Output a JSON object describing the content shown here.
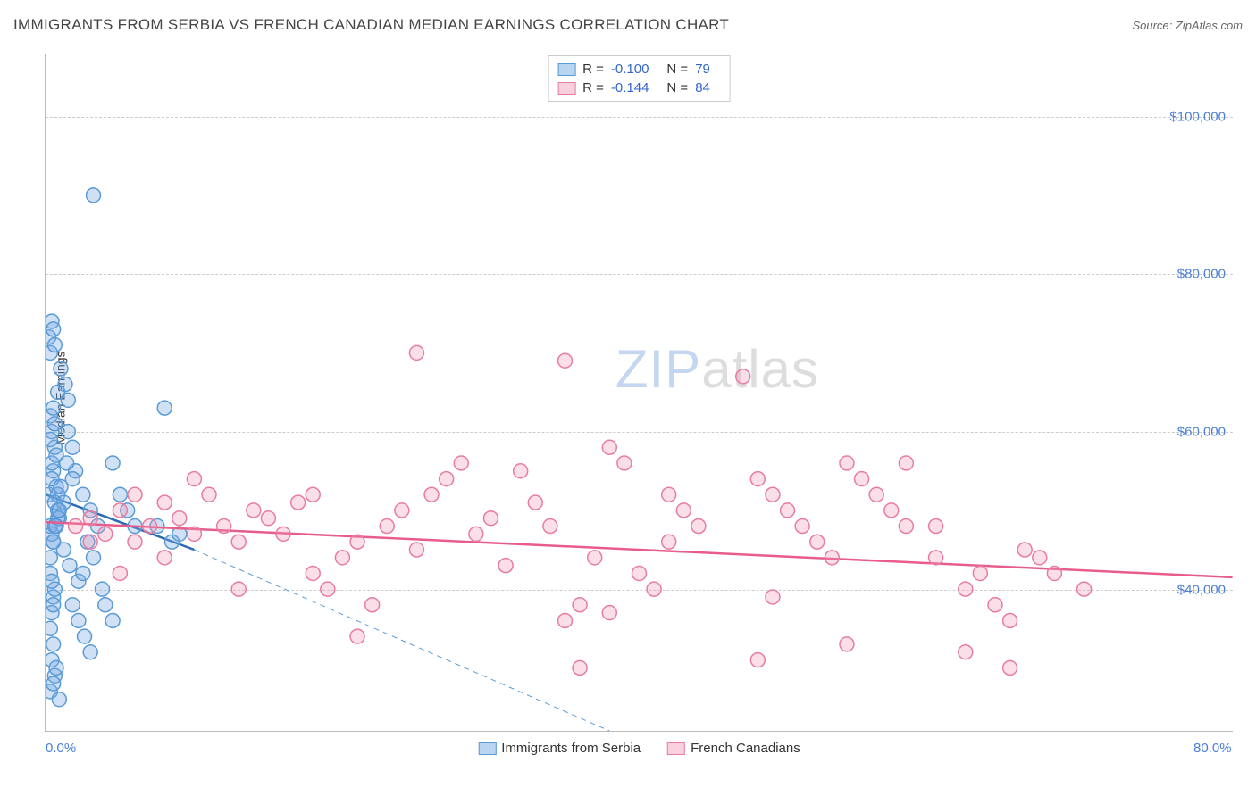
{
  "title": "IMMIGRANTS FROM SERBIA VS FRENCH CANADIAN MEDIAN EARNINGS CORRELATION CHART",
  "source": "Source: ZipAtlas.com",
  "watermark_parts": [
    "ZIP",
    "atlas"
  ],
  "chart": {
    "type": "scatter",
    "ylabel": "Median Earnings",
    "xlim": [
      0,
      80
    ],
    "ylim": [
      22000,
      108000
    ],
    "x_ticks": [
      {
        "v": 0,
        "label": "0.0%"
      },
      {
        "v": 80,
        "label": "80.0%"
      }
    ],
    "y_ticks": [
      {
        "v": 40000,
        "label": "$40,000"
      },
      {
        "v": 60000,
        "label": "$60,000"
      },
      {
        "v": 80000,
        "label": "$80,000"
      },
      {
        "v": 100000,
        "label": "$100,000"
      }
    ],
    "grid_color": "#cccccc",
    "background_color": "#ffffff",
    "marker_radius": 8,
    "marker_stroke_width": 1.5,
    "trend_line_width": 2.5,
    "dashed_line_width": 1,
    "series": [
      {
        "name": "Immigrants from Serbia",
        "color_fill": "rgba(120,170,230,0.35)",
        "color_stroke": "#5a9bd5",
        "swatch_fill": "#b8d4f0",
        "swatch_stroke": "#5a9bd5",
        "R": "-0.100",
        "N": "79",
        "trend": {
          "x1": 0,
          "y1": 52000,
          "x2": 10,
          "y2": 45000,
          "color": "#2b6cb0"
        },
        "dashed_extension": {
          "x1": 10,
          "y1": 45000,
          "x2": 38,
          "y2": 22000,
          "color": "#5a9bd5"
        },
        "points": [
          [
            0.2,
            52000
          ],
          [
            0.3,
            48000
          ],
          [
            0.5,
            55000
          ],
          [
            0.4,
            60000
          ],
          [
            0.6,
            58000
          ],
          [
            0.3,
            62000
          ],
          [
            0.8,
            50000
          ],
          [
            0.5,
            46000
          ],
          [
            0.7,
            53000
          ],
          [
            0.4,
            56000
          ],
          [
            0.9,
            49000
          ],
          [
            0.6,
            61000
          ],
          [
            0.3,
            59000
          ],
          [
            0.5,
            63000
          ],
          [
            0.7,
            57000
          ],
          [
            0.4,
            54000
          ],
          [
            0.8,
            52000
          ],
          [
            0.6,
            48000
          ],
          [
            0.2,
            72000
          ],
          [
            0.4,
            74000
          ],
          [
            0.3,
            70000
          ],
          [
            0.5,
            73000
          ],
          [
            0.6,
            71000
          ],
          [
            0.3,
            42000
          ],
          [
            0.5,
            39000
          ],
          [
            0.4,
            37000
          ],
          [
            0.6,
            40000
          ],
          [
            0.3,
            35000
          ],
          [
            0.5,
            33000
          ],
          [
            0.4,
            31000
          ],
          [
            0.6,
            29000
          ],
          [
            0.3,
            27000
          ],
          [
            0.5,
            38000
          ],
          [
            0.4,
            41000
          ],
          [
            1.5,
            60000
          ],
          [
            1.8,
            58000
          ],
          [
            2.0,
            55000
          ],
          [
            2.5,
            52000
          ],
          [
            3.0,
            50000
          ],
          [
            3.5,
            48000
          ],
          [
            1.2,
            45000
          ],
          [
            1.6,
            43000
          ],
          [
            2.2,
            41000
          ],
          [
            1.4,
            56000
          ],
          [
            1.8,
            54000
          ],
          [
            4.5,
            56000
          ],
          [
            5.0,
            52000
          ],
          [
            5.5,
            50000
          ],
          [
            6.0,
            48000
          ],
          [
            4.0,
            38000
          ],
          [
            4.5,
            36000
          ],
          [
            3.2,
            90000
          ],
          [
            8.0,
            63000
          ],
          [
            7.5,
            48000
          ],
          [
            8.5,
            46000
          ],
          [
            9.0,
            47000
          ],
          [
            1.0,
            68000
          ],
          [
            1.3,
            66000
          ],
          [
            0.8,
            65000
          ],
          [
            1.5,
            64000
          ],
          [
            2.8,
            46000
          ],
          [
            3.2,
            44000
          ],
          [
            2.5,
            42000
          ],
          [
            3.8,
            40000
          ],
          [
            0.4,
            47000
          ],
          [
            0.6,
            51000
          ],
          [
            0.8,
            49000
          ],
          [
            1.0,
            53000
          ],
          [
            1.2,
            51000
          ],
          [
            0.3,
            44000
          ],
          [
            0.5,
            46000
          ],
          [
            0.7,
            48000
          ],
          [
            0.9,
            50000
          ],
          [
            1.8,
            38000
          ],
          [
            2.2,
            36000
          ],
          [
            2.6,
            34000
          ],
          [
            3.0,
            32000
          ],
          [
            0.5,
            28000
          ],
          [
            0.7,
            30000
          ],
          [
            0.9,
            26000
          ]
        ]
      },
      {
        "name": "French Canadians",
        "color_fill": "rgba(240,150,180,0.3)",
        "color_stroke": "#e87ca0",
        "swatch_fill": "#f8d0de",
        "swatch_stroke": "#e87ca0",
        "R": "-0.144",
        "N": "84",
        "trend": {
          "x1": 0,
          "y1": 48500,
          "x2": 80,
          "y2": 41500,
          "color": "#e85c8a"
        },
        "points": [
          [
            2,
            48000
          ],
          [
            3,
            49000
          ],
          [
            4,
            47000
          ],
          [
            5,
            50000
          ],
          [
            6,
            46000
          ],
          [
            7,
            48000
          ],
          [
            8,
            51000
          ],
          [
            9,
            49000
          ],
          [
            10,
            47000
          ],
          [
            11,
            52000
          ],
          [
            12,
            48000
          ],
          [
            13,
            46000
          ],
          [
            14,
            50000
          ],
          [
            15,
            49000
          ],
          [
            16,
            47000
          ],
          [
            17,
            51000
          ],
          [
            18,
            42000
          ],
          [
            19,
            40000
          ],
          [
            20,
            44000
          ],
          [
            21,
            46000
          ],
          [
            22,
            38000
          ],
          [
            23,
            48000
          ],
          [
            24,
            50000
          ],
          [
            25,
            45000
          ],
          [
            26,
            52000
          ],
          [
            27,
            54000
          ],
          [
            28,
            56000
          ],
          [
            29,
            47000
          ],
          [
            30,
            49000
          ],
          [
            31,
            43000
          ],
          [
            32,
            55000
          ],
          [
            33,
            51000
          ],
          [
            34,
            48000
          ],
          [
            35,
            36000
          ],
          [
            36,
            38000
          ],
          [
            37,
            44000
          ],
          [
            38,
            58000
          ],
          [
            39,
            56000
          ],
          [
            40,
            42000
          ],
          [
            41,
            40000
          ],
          [
            42,
            46000
          ],
          [
            43,
            50000
          ],
          [
            44,
            48000
          ],
          [
            25,
            70000
          ],
          [
            35,
            69000
          ],
          [
            47,
            67000
          ],
          [
            48,
            54000
          ],
          [
            49,
            52000
          ],
          [
            50,
            50000
          ],
          [
            51,
            48000
          ],
          [
            52,
            46000
          ],
          [
            53,
            44000
          ],
          [
            54,
            56000
          ],
          [
            55,
            54000
          ],
          [
            56,
            52000
          ],
          [
            57,
            50000
          ],
          [
            58,
            48000
          ],
          [
            36,
            30000
          ],
          [
            60,
            44000
          ],
          [
            21,
            34000
          ],
          [
            62,
            40000
          ],
          [
            63,
            42000
          ],
          [
            64,
            38000
          ],
          [
            65,
            36000
          ],
          [
            66,
            45000
          ],
          [
            67,
            44000
          ],
          [
            68,
            42000
          ],
          [
            48,
            31000
          ],
          [
            70,
            40000
          ],
          [
            54,
            33000
          ],
          [
            58,
            56000
          ],
          [
            62,
            32000
          ],
          [
            49,
            39000
          ],
          [
            38,
            37000
          ],
          [
            65,
            30000
          ],
          [
            60,
            48000
          ],
          [
            42,
            52000
          ],
          [
            13,
            40000
          ],
          [
            8,
            44000
          ],
          [
            5,
            42000
          ],
          [
            3,
            46000
          ],
          [
            18,
            52000
          ],
          [
            10,
            54000
          ],
          [
            6,
            52000
          ]
        ]
      }
    ],
    "stats_labels": {
      "R": "R =",
      "N": "N ="
    }
  }
}
